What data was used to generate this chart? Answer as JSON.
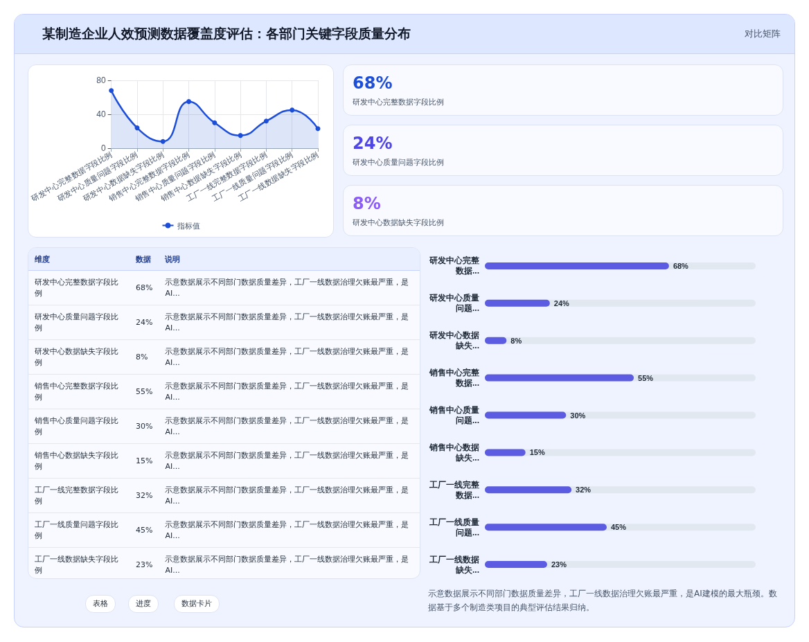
{
  "chart_data": [
    {
      "type": "area",
      "title": "某制造企业人效预测数据覆盖度评估：各部门关键字段质量分布",
      "categories": [
        "研发中心完整数据字段比例",
        "研发中心质量问题字段比例",
        "研发中心数据缺失字段比例",
        "销售中心完整数据字段比例",
        "销售中心质量问题字段比例",
        "销售中心数据缺失字段比例",
        "工厂一线完整数据字段比例",
        "工厂一线质量问题字段比例",
        "工厂一线数据缺失字段比例"
      ],
      "series": [
        {
          "name": "指标值",
          "color": "#1d4ed8",
          "values": [
            68,
            24,
            8,
            55,
            30,
            15,
            32,
            45,
            23
          ]
        }
      ],
      "ylim": [
        0,
        80
      ],
      "yticks": [
        0,
        40,
        80
      ],
      "grid": true,
      "legend": "bottom",
      "marker": "circle",
      "line_style": "solid",
      "annotations": [
        "对比矩阵",
        "表格",
        "进度",
        "数据卡片"
      ]
    },
    {
      "type": "other",
      "annotations": [
        "68%",
        "研发中心完整数据字段比例",
        "24%",
        "研发中心质量问题字段比例",
        "8%",
        "研发中心数据缺失字段比例"
      ]
    },
    {
      "type": "other",
      "annotations": [
        "维度",
        "数据",
        "说明",
        "研发中心完整数据字段比例",
        "68%",
        "示意数据展示不同部门数据质量差异，工厂一线数据治理欠账最严重，是AI...",
        "研发中心质量问题字段比例",
        "24%",
        "示意数据展示不同部门数据质量差异，工厂一线数据治理欠账最严重，是AI...",
        "研发中心数据缺失字段比例",
        "8%",
        "示意数据展示不同部门数据质量差异，工厂一线数据治理欠账最严重，是AI...",
        "销售中心完整数据字段比例",
        "55%",
        "示意数据展示不同部门数据质量差异，工厂一线数据治理欠账最严重，是AI...",
        "销售中心质量问题字段比例",
        "30%",
        "示意数据展示不同部门数据质量差异，工厂一线数据治理欠账最严重，是AI...",
        "销售中心数据缺失字段比例",
        "15%",
        "示意数据展示不同部门数据质量差异，工厂一线数据治理欠账最严重，是AI...",
        "工厂一线完整数据字段比例",
        "32%",
        "示意数据展示不同部门数据质量差异，工厂一线数据治理欠账最严重，是AI...",
        "工厂一线质量问题字段比例",
        "45%",
        "示意数据展示不同部门数据质量差异，工厂一线数据治理欠账最严重，是AI...",
        "工厂一线数据缺失字段比例",
        "23%",
        "示意数据展示不同部门数据质量差异，工厂一线数据治理欠账最严重，是AI..."
      ]
    },
    {
      "type": "bar",
      "orientation": "horizontal",
      "categories": [
        "研发中心完整数据...",
        "研发中心质量问题...",
        "研发中心数据缺失...",
        "销售中心完整数据...",
        "销售中心质量问题...",
        "销售中心数据缺失...",
        "工厂一线完整数据...",
        "工厂一线质量问题...",
        "工厂一线数据缺失..."
      ],
      "values": [
        68,
        24,
        8,
        55,
        30,
        15,
        32,
        45,
        23
      ],
      "value_labels": [
        "68%",
        "24%",
        "8%",
        "55%",
        "30%",
        "15%",
        "32%",
        "45%",
        "23%"
      ],
      "color": "#5b5ce2",
      "xlim": [
        0,
        100
      ],
      "tick_labels": false,
      "annotations": [
        "示意数据展示不同部门数据质量差异，工厂一线数据治理欠账最严重，是AI建模的最大瓶颈。数据基于多个制造类项目的典型评估结果归纳。"
      ]
    }
  ]
}
